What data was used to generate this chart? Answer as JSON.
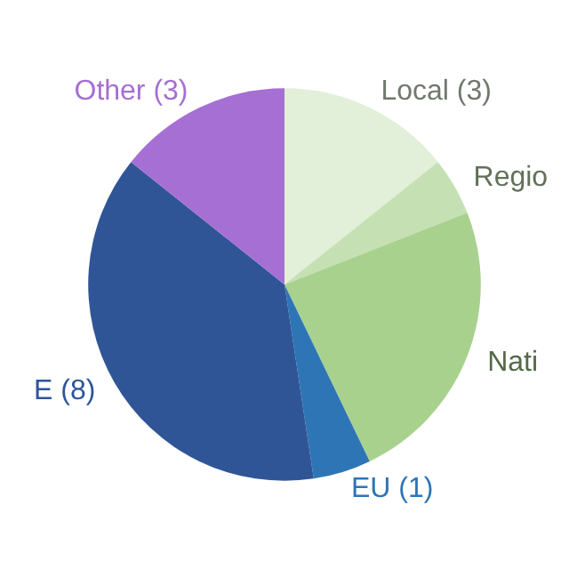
{
  "chart_data": {
    "type": "pie",
    "categories": [
      "Local (3)",
      "Regio",
      "Nati",
      "EU (1)",
      "E (8)",
      "Other (3)"
    ],
    "values": [
      3,
      1,
      5,
      1,
      8,
      3
    ],
    "colors": [
      "#e2efd9",
      "#c5e0b3",
      "#a9d18e",
      "#2e75b6",
      "#2f5597",
      "#a66fd4"
    ]
  }
}
